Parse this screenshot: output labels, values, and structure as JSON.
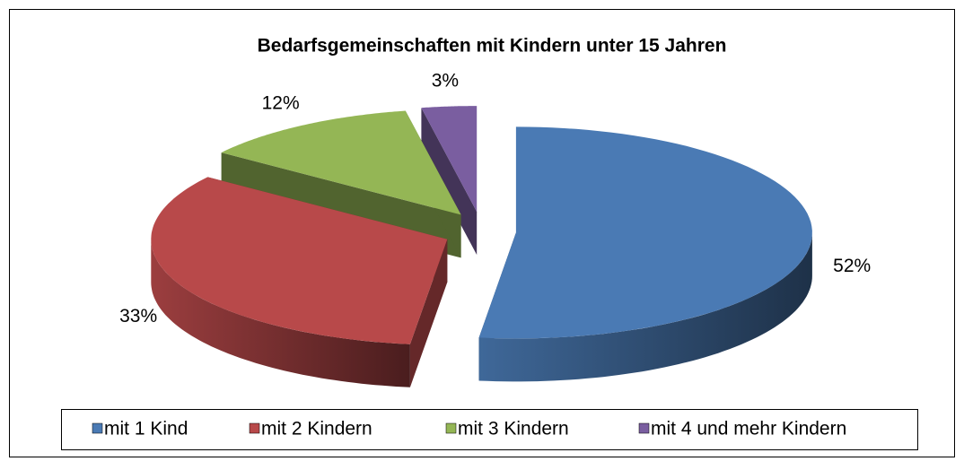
{
  "chart_data": {
    "type": "pie",
    "title": "Bedarfsgemeinschaften mit Kindern unter 15 Jahren",
    "categories": [
      "mit 1 Kind",
      "mit 2 Kindern",
      "mit 3 Kindern",
      "mit 4 und mehr Kindern"
    ],
    "values": [
      52,
      33,
      12,
      3
    ],
    "value_labels": [
      "52%",
      "33%",
      "12%",
      "3%"
    ],
    "colors": [
      "#4a7ab4",
      "#b8494a",
      "#94b655",
      "#7a5ea0"
    ],
    "legend": "bottom"
  }
}
